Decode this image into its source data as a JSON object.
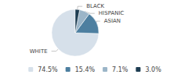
{
  "chart_data": {
    "type": "pie",
    "categories": [
      "WHITE",
      "ASIAN",
      "HISPANIC",
      "BLACK"
    ],
    "values": [
      74.5,
      15.4,
      7.1,
      3.0
    ],
    "value_labels": [
      "74.5%",
      "15.4%",
      "7.1%",
      "3.0%"
    ],
    "colors": [
      "#d6e0ea",
      "#4d7fa0",
      "#9bb5c8",
      "#1e3d52"
    ],
    "legend": "bottom"
  }
}
